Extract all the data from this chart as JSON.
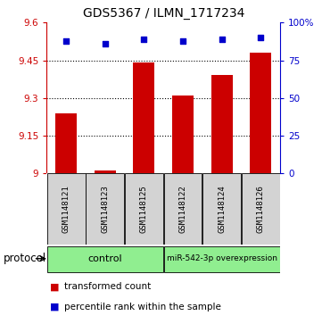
{
  "title": "GDS5367 / ILMN_1717234",
  "samples": [
    "GSM1148121",
    "GSM1148123",
    "GSM1148125",
    "GSM1148122",
    "GSM1148124",
    "GSM1148126"
  ],
  "bar_values": [
    9.24,
    9.01,
    9.44,
    9.31,
    9.39,
    9.48
  ],
  "percentile_values": [
    88,
    86,
    89,
    88,
    89,
    90
  ],
  "ylim_left": [
    9.0,
    9.6
  ],
  "ylim_right": [
    0,
    100
  ],
  "yticks_left": [
    9.0,
    9.15,
    9.3,
    9.45,
    9.6
  ],
  "ytick_labels_left": [
    "9",
    "9.15",
    "9.3",
    "9.45",
    "9.6"
  ],
  "yticks_right": [
    0,
    25,
    50,
    75,
    100
  ],
  "ytick_labels_right": [
    "0",
    "25",
    "50",
    "75",
    "100%"
  ],
  "grid_values": [
    9.15,
    9.3,
    9.45
  ],
  "bar_color": "#cc0000",
  "scatter_color": "#0000cc",
  "bar_width": 0.55,
  "control_label": "control",
  "mir_label": "miR-542-3p overexpression",
  "group_color": "#90ee90",
  "legend_red_label": "transformed count",
  "legend_blue_label": "percentile rank within the sample",
  "protocol_label": "protocol",
  "title_fontsize": 10,
  "axis_label_color_left": "#cc0000",
  "axis_label_color_right": "#0000cc",
  "sample_label_color": "#000000",
  "bg_color": "#ffffff"
}
